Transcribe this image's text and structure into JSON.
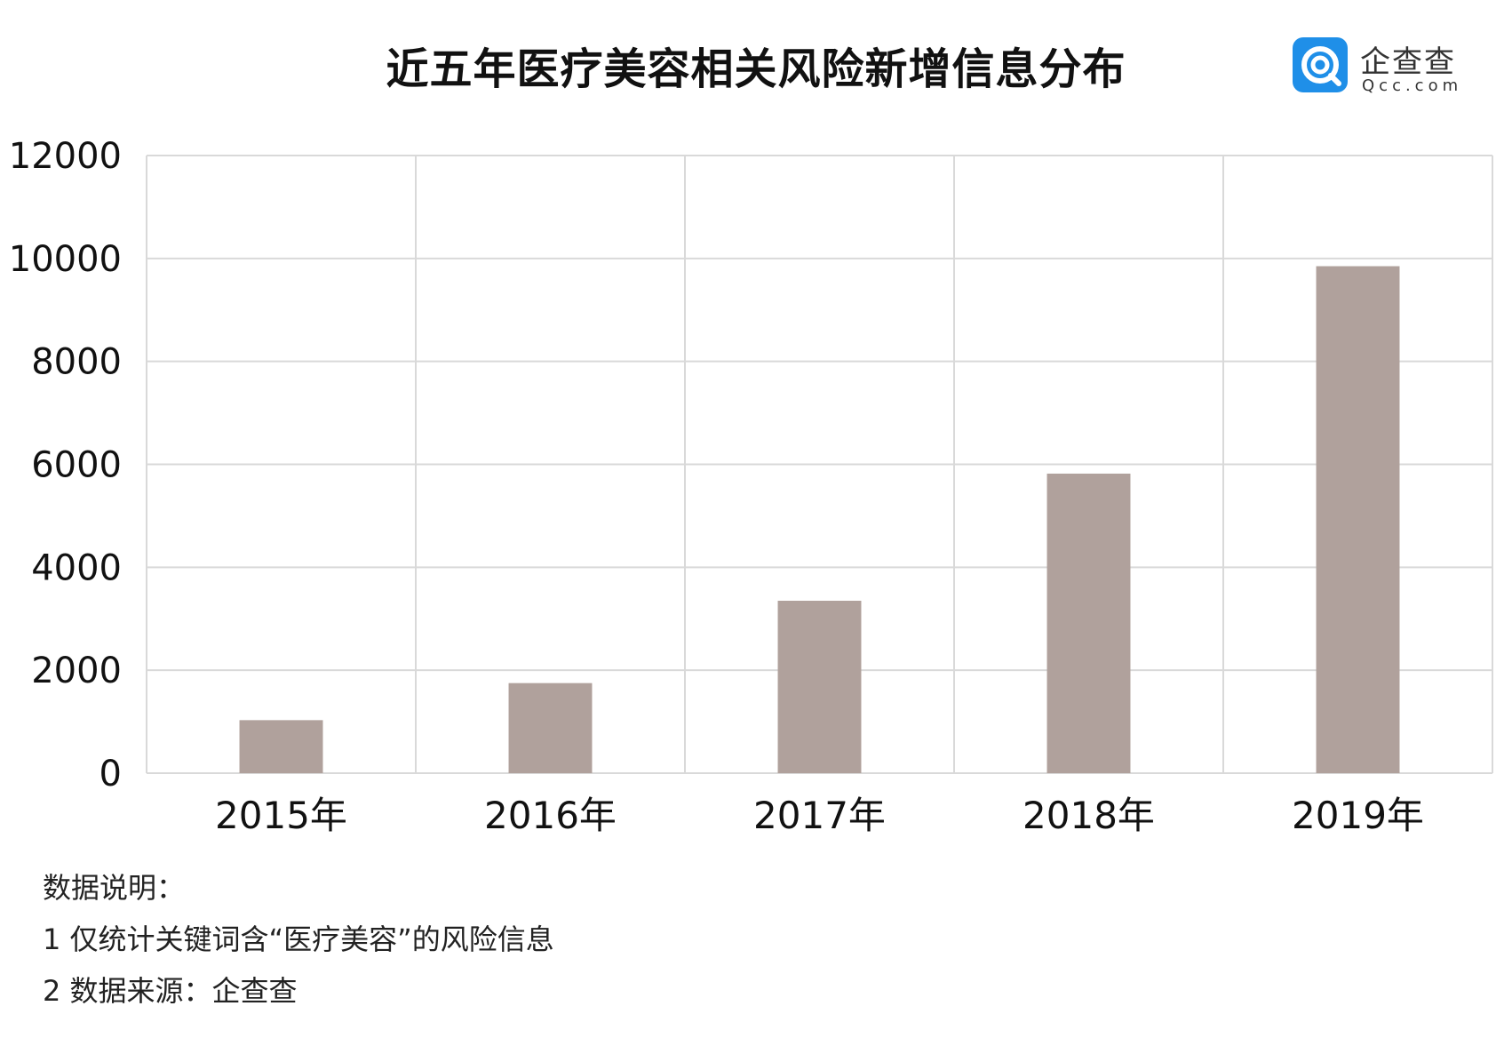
{
  "title": "近五年医疗美容相关风险新增信息分布",
  "logo": {
    "cn": "企查查",
    "en": "Qcc.com",
    "icon": "qcc-logo-icon"
  },
  "colors": {
    "bar": "#b0a19c",
    "grid": "#d9d9d9",
    "text": "#111111",
    "logo": "#1f8fe8"
  },
  "chart_data": {
    "type": "bar",
    "title": "近五年医疗美容相关风险新增信息分布",
    "xlabel": "",
    "ylabel": "",
    "categories": [
      "2015年",
      "2016年",
      "2017年",
      "2018年",
      "2019年"
    ],
    "values": [
      1030,
      1750,
      3350,
      5820,
      9850
    ],
    "ylim": [
      0,
      12000
    ],
    "yticks": [
      "0",
      "2000",
      "4000",
      "6000",
      "8000",
      "10000",
      "12000"
    ],
    "grid": true,
    "legend": "none"
  },
  "notes": {
    "heading": "数据说明：",
    "line1": "1 仅统计关键词含“医疗美容”的风险信息",
    "line2": "2 数据来源：企查查"
  }
}
